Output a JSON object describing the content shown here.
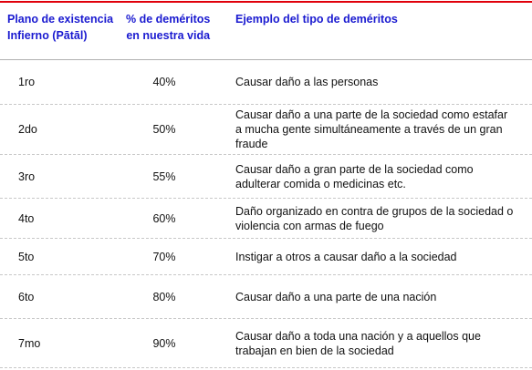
{
  "table": {
    "header": [
      [
        "Plano de existencia",
        "Infierno (Pātāl)"
      ],
      [
        "% de deméritos",
        "en nuestra vida"
      ],
      [
        "Ejemplo del tipo de deméritos"
      ]
    ],
    "rows": [
      [
        "1ro",
        "40%",
        [
          "Causar daño a las personas"
        ]
      ],
      [
        "2do",
        "50%",
        [
          "Causar daño a una parte  de la sociedad como estafar",
          "a mucha gente simultáneamente a través de un gran",
          "fraude"
        ]
      ],
      [
        "3ro",
        "55%",
        [
          "Causar daño a gran parte de la sociedad como",
          "adulterar comida o medicinas etc."
        ]
      ],
      [
        "4to",
        "60%",
        [
          "Daño organizado en contra de grupos de la sociedad o",
          "violencia con armas de fuego"
        ]
      ],
      [
        "5to",
        "70%",
        [
          "Instigar a otros a causar daño a la sociedad"
        ]
      ],
      [
        "6to",
        "80%",
        [
          "Causar daño a una parte de una nación"
        ]
      ],
      [
        "7mo",
        "90%",
        [
          "Causar daño a toda una nación y a aquellos que",
          "trabajan en bien de la sociedad"
        ]
      ]
    ]
  }
}
